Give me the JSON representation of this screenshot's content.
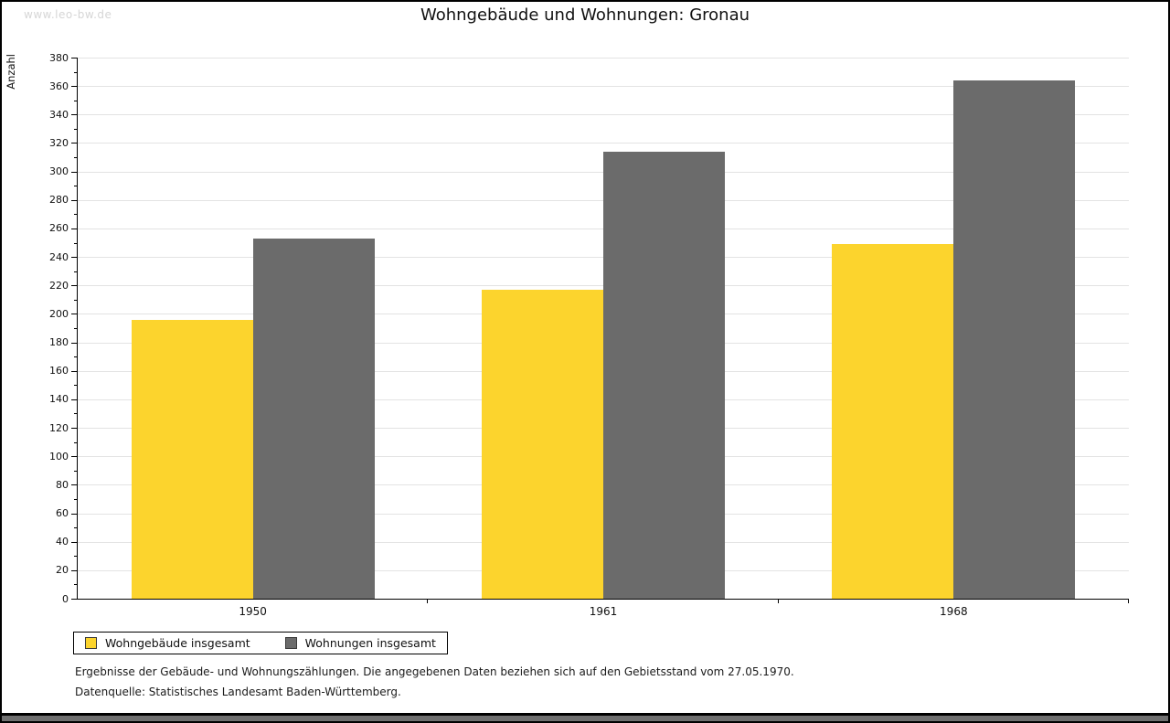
{
  "watermark": "www.leo-bw.de",
  "chart_data": {
    "type": "bar",
    "title": "Wohngebäude und Wohnungen: Gronau",
    "ylabel": "Anzahl",
    "xlabel": "",
    "categories": [
      "1950",
      "1961",
      "1968"
    ],
    "series": [
      {
        "name": "Wohngebäude insgesamt",
        "color": "#FCD42D",
        "values": [
          196,
          217,
          249
        ]
      },
      {
        "name": "Wohnungen insgesamt",
        "color": "#6B6B6B",
        "values": [
          253,
          314,
          364
        ]
      }
    ],
    "ylim": [
      0,
      380
    ],
    "ytick_step": 20,
    "yminor_step": 10,
    "grid": true,
    "gridline_color": "#e3e3e3",
    "legend_position": "bottom-left"
  },
  "footnotes": {
    "line1": "Ergebnisse der Gebäude- und Wohnungszählungen. Die angegebenen Daten beziehen sich auf den Gebietsstand vom 27.05.1970.",
    "line2": "Datenquelle: Statistisches Landesamt Baden-Württemberg."
  }
}
